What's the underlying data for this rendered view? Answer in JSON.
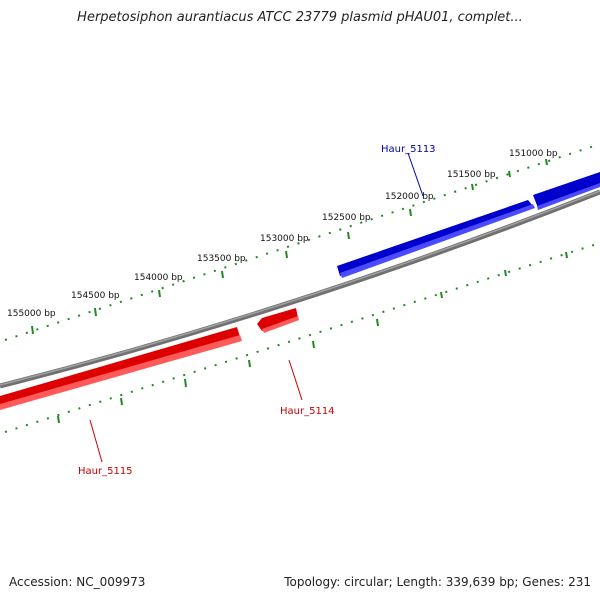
{
  "title": "Herpetosiphon aurantiacus ATCC 23779 plasmid pHAU01, complet...",
  "footer": {
    "accession_label": "Accession:",
    "accession": "NC_009973",
    "topology_label": "Topology:",
    "topology": "circular",
    "length_label": "Length:",
    "length": "339,639 bp",
    "genes_label": "Genes:",
    "genes": "231"
  },
  "colors": {
    "forward_strand": "#0000cc",
    "reverse_strand": "#dd0000",
    "backbone": "#808080",
    "ticks": "#228822"
  },
  "ticks": [
    {
      "label": "151000 bp"
    },
    {
      "label": "151500 bp"
    },
    {
      "label": "152000 bp"
    },
    {
      "label": "152500 bp"
    },
    {
      "label": "153000 bp"
    },
    {
      "label": "153500 bp"
    },
    {
      "label": "154000 bp"
    },
    {
      "label": "154500 bp"
    },
    {
      "label": "155000 bp"
    }
  ],
  "genes": [
    {
      "name": "Haur_5113",
      "strand": "forward"
    },
    {
      "name": "Haur_5114",
      "strand": "reverse"
    },
    {
      "name": "Haur_5115",
      "strand": "reverse"
    }
  ]
}
